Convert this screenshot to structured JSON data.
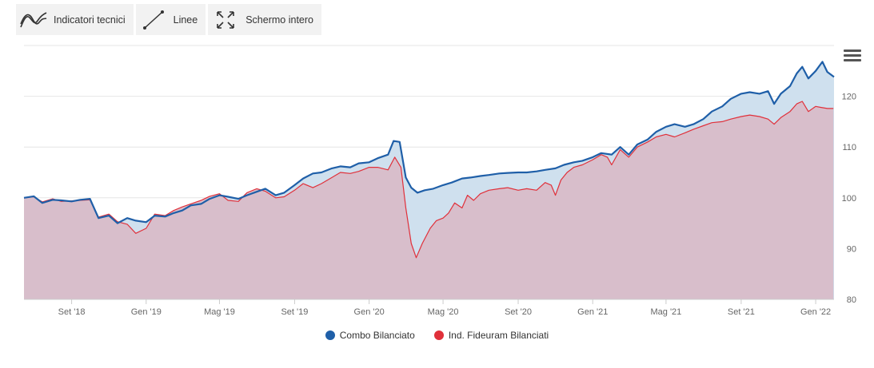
{
  "toolbar": {
    "indicators": {
      "label": "Indicatori tecnici",
      "icon": "indicators-icon"
    },
    "lines": {
      "label": "Linee",
      "icon": "line-icon"
    },
    "fullscreen": {
      "label": "Schermo intero",
      "icon": "fullscreen-icon"
    }
  },
  "menu": {
    "icon": "hamburger-menu-icon"
  },
  "colors": {
    "combo_line": "#1f5fa8",
    "combo_fill": "#cfe0ee",
    "fideuram_line": "#e0303a",
    "fideuram_fill": "#d8bcc8",
    "grid": "#e6e6e6",
    "axis_text": "#666666"
  },
  "chart_data": {
    "type": "area",
    "x_range": [
      "2018-06-15",
      "2022-01-31"
    ],
    "x_ticks": [
      {
        "date": "2018-09-01",
        "label": "Set '18"
      },
      {
        "date": "2019-01-01",
        "label": "Gen '19"
      },
      {
        "date": "2019-05-01",
        "label": "Mag '19"
      },
      {
        "date": "2019-09-01",
        "label": "Set '19"
      },
      {
        "date": "2020-01-01",
        "label": "Gen '20"
      },
      {
        "date": "2020-05-01",
        "label": "Mag '20"
      },
      {
        "date": "2020-09-01",
        "label": "Set '20"
      },
      {
        "date": "2021-01-01",
        "label": "Gen '21"
      },
      {
        "date": "2021-05-01",
        "label": "Mag '21"
      },
      {
        "date": "2021-09-01",
        "label": "Set '21"
      },
      {
        "date": "2022-01-01",
        "label": "Gen '22"
      }
    ],
    "ylim": [
      80,
      130
    ],
    "y_ticks": [
      80,
      90,
      100,
      110,
      120
    ],
    "y_axis_position": "right",
    "grid": true,
    "legend_position": "bottom",
    "series": [
      {
        "name": "Combo Bilanciato",
        "points": [
          [
            "2018-06-15",
            100
          ],
          [
            "2018-07-01",
            100.3
          ],
          [
            "2018-07-15",
            99
          ],
          [
            "2018-08-01",
            99.6
          ],
          [
            "2018-08-15",
            99.5
          ],
          [
            "2018-09-01",
            99.3
          ],
          [
            "2018-09-15",
            99.6
          ],
          [
            "2018-10-01",
            99.8
          ],
          [
            "2018-10-15",
            96
          ],
          [
            "2018-11-01",
            96.5
          ],
          [
            "2018-11-15",
            95
          ],
          [
            "2018-12-01",
            96
          ],
          [
            "2018-12-15",
            95.5
          ],
          [
            "2019-01-01",
            95.2
          ],
          [
            "2019-01-15",
            96.5
          ],
          [
            "2019-02-01",
            96.3
          ],
          [
            "2019-02-15",
            97
          ],
          [
            "2019-03-01",
            97.5
          ],
          [
            "2019-03-15",
            98.5
          ],
          [
            "2019-04-01",
            98.8
          ],
          [
            "2019-04-15",
            99.8
          ],
          [
            "2019-05-01",
            100.5
          ],
          [
            "2019-05-15",
            100.2
          ],
          [
            "2019-06-01",
            99.8
          ],
          [
            "2019-06-15",
            100.5
          ],
          [
            "2019-07-01",
            101.2
          ],
          [
            "2019-07-15",
            101.8
          ],
          [
            "2019-08-01",
            100.5
          ],
          [
            "2019-08-15",
            101
          ],
          [
            "2019-09-01",
            102.5
          ],
          [
            "2019-09-15",
            103.8
          ],
          [
            "2019-10-01",
            104.8
          ],
          [
            "2019-10-15",
            105
          ],
          [
            "2019-11-01",
            105.8
          ],
          [
            "2019-11-15",
            106.2
          ],
          [
            "2019-12-01",
            106
          ],
          [
            "2019-12-15",
            106.8
          ],
          [
            "2020-01-01",
            107
          ],
          [
            "2020-01-15",
            107.8
          ],
          [
            "2020-02-01",
            108.5
          ],
          [
            "2020-02-10",
            111.2
          ],
          [
            "2020-02-20",
            111
          ],
          [
            "2020-03-01",
            104
          ],
          [
            "2020-03-10",
            102
          ],
          [
            "2020-03-20",
            101
          ],
          [
            "2020-04-01",
            101.5
          ],
          [
            "2020-04-15",
            101.8
          ],
          [
            "2020-05-01",
            102.5
          ],
          [
            "2020-05-15",
            103
          ],
          [
            "2020-06-01",
            103.8
          ],
          [
            "2020-06-15",
            104
          ],
          [
            "2020-07-01",
            104.3
          ],
          [
            "2020-07-15",
            104.5
          ],
          [
            "2020-08-01",
            104.8
          ],
          [
            "2020-08-15",
            104.9
          ],
          [
            "2020-09-01",
            105
          ],
          [
            "2020-09-15",
            105
          ],
          [
            "2020-10-01",
            105.2
          ],
          [
            "2020-10-15",
            105.5
          ],
          [
            "2020-11-01",
            105.8
          ],
          [
            "2020-11-15",
            106.5
          ],
          [
            "2020-12-01",
            107
          ],
          [
            "2020-12-15",
            107.3
          ],
          [
            "2021-01-01",
            108
          ],
          [
            "2021-01-15",
            108.8
          ],
          [
            "2021-02-01",
            108.5
          ],
          [
            "2021-02-15",
            110
          ],
          [
            "2021-03-01",
            108.5
          ],
          [
            "2021-03-15",
            110.5
          ],
          [
            "2021-04-01",
            111.5
          ],
          [
            "2021-04-15",
            113
          ],
          [
            "2021-05-01",
            114
          ],
          [
            "2021-05-15",
            114.5
          ],
          [
            "2021-06-01",
            114
          ],
          [
            "2021-06-15",
            114.5
          ],
          [
            "2021-07-01",
            115.5
          ],
          [
            "2021-07-15",
            117
          ],
          [
            "2021-08-01",
            118
          ],
          [
            "2021-08-15",
            119.5
          ],
          [
            "2021-09-01",
            120.5
          ],
          [
            "2021-09-15",
            120.8
          ],
          [
            "2021-10-01",
            120.5
          ],
          [
            "2021-10-15",
            121
          ],
          [
            "2021-10-25",
            118.5
          ],
          [
            "2021-11-05",
            120.5
          ],
          [
            "2021-11-20",
            122
          ],
          [
            "2021-12-01",
            124.5
          ],
          [
            "2021-12-10",
            125.8
          ],
          [
            "2021-12-20",
            123.5
          ],
          [
            "2022-01-01",
            125
          ],
          [
            "2022-01-12",
            126.8
          ],
          [
            "2022-01-20",
            124.8
          ],
          [
            "2022-01-31",
            123.8
          ]
        ]
      },
      {
        "name": "Ind. Fideuram Bilanciati",
        "points": [
          [
            "2018-06-15",
            100
          ],
          [
            "2018-07-01",
            100.2
          ],
          [
            "2018-07-15",
            99.2
          ],
          [
            "2018-08-01",
            99.8
          ],
          [
            "2018-08-15",
            99.3
          ],
          [
            "2018-09-01",
            99.4
          ],
          [
            "2018-09-15",
            99.5
          ],
          [
            "2018-10-01",
            99.6
          ],
          [
            "2018-10-15",
            96.2
          ],
          [
            "2018-11-01",
            96.8
          ],
          [
            "2018-11-15",
            95.3
          ],
          [
            "2018-12-01",
            94.8
          ],
          [
            "2018-12-15",
            93
          ],
          [
            "2019-01-01",
            94
          ],
          [
            "2019-01-15",
            96.8
          ],
          [
            "2019-02-01",
            96.5
          ],
          [
            "2019-02-15",
            97.5
          ],
          [
            "2019-03-01",
            98.2
          ],
          [
            "2019-03-15",
            98.8
          ],
          [
            "2019-04-01",
            99.5
          ],
          [
            "2019-04-15",
            100.3
          ],
          [
            "2019-05-01",
            100.8
          ],
          [
            "2019-05-15",
            99.5
          ],
          [
            "2019-06-01",
            99.3
          ],
          [
            "2019-06-15",
            101
          ],
          [
            "2019-07-01",
            101.8
          ],
          [
            "2019-07-15",
            101.3
          ],
          [
            "2019-08-01",
            100
          ],
          [
            "2019-08-15",
            100.2
          ],
          [
            "2019-09-01",
            101.5
          ],
          [
            "2019-09-15",
            102.8
          ],
          [
            "2019-10-01",
            102
          ],
          [
            "2019-10-15",
            102.8
          ],
          [
            "2019-11-01",
            104
          ],
          [
            "2019-11-15",
            105
          ],
          [
            "2019-12-01",
            104.8
          ],
          [
            "2019-12-15",
            105.2
          ],
          [
            "2020-01-01",
            106
          ],
          [
            "2020-01-15",
            106
          ],
          [
            "2020-02-01",
            105.5
          ],
          [
            "2020-02-12",
            108
          ],
          [
            "2020-02-22",
            106
          ],
          [
            "2020-03-01",
            98
          ],
          [
            "2020-03-10",
            91
          ],
          [
            "2020-03-18",
            88.2
          ],
          [
            "2020-03-28",
            91
          ],
          [
            "2020-04-10",
            94
          ],
          [
            "2020-04-20",
            95.5
          ],
          [
            "2020-05-01",
            96
          ],
          [
            "2020-05-10",
            97
          ],
          [
            "2020-05-20",
            99
          ],
          [
            "2020-06-01",
            98
          ],
          [
            "2020-06-10",
            100.5
          ],
          [
            "2020-06-20",
            99.5
          ],
          [
            "2020-07-01",
            100.8
          ],
          [
            "2020-07-15",
            101.5
          ],
          [
            "2020-08-01",
            101.8
          ],
          [
            "2020-08-15",
            102
          ],
          [
            "2020-09-01",
            101.5
          ],
          [
            "2020-09-15",
            101.8
          ],
          [
            "2020-10-01",
            101.5
          ],
          [
            "2020-10-15",
            103
          ],
          [
            "2020-10-25",
            102.5
          ],
          [
            "2020-11-01",
            100.5
          ],
          [
            "2020-11-10",
            103.5
          ],
          [
            "2020-11-20",
            105
          ],
          [
            "2020-12-01",
            106
          ],
          [
            "2020-12-15",
            106.5
          ],
          [
            "2021-01-01",
            107.5
          ],
          [
            "2021-01-15",
            108.5
          ],
          [
            "2021-01-25",
            108
          ],
          [
            "2021-02-01",
            106.5
          ],
          [
            "2021-02-15",
            109.5
          ],
          [
            "2021-03-01",
            108
          ],
          [
            "2021-03-15",
            110
          ],
          [
            "2021-04-01",
            111
          ],
          [
            "2021-04-15",
            112
          ],
          [
            "2021-05-01",
            112.5
          ],
          [
            "2021-05-15",
            112
          ],
          [
            "2021-06-01",
            112.8
          ],
          [
            "2021-06-15",
            113.5
          ],
          [
            "2021-07-01",
            114.2
          ],
          [
            "2021-07-15",
            114.8
          ],
          [
            "2021-08-01",
            115
          ],
          [
            "2021-08-15",
            115.5
          ],
          [
            "2021-09-01",
            116
          ],
          [
            "2021-09-15",
            116.3
          ],
          [
            "2021-10-01",
            116
          ],
          [
            "2021-10-15",
            115.5
          ],
          [
            "2021-10-25",
            114.5
          ],
          [
            "2021-11-05",
            115.8
          ],
          [
            "2021-11-20",
            117
          ],
          [
            "2021-12-01",
            118.5
          ],
          [
            "2021-12-10",
            119
          ],
          [
            "2021-12-20",
            117
          ],
          [
            "2022-01-01",
            118
          ],
          [
            "2022-01-10",
            117.8
          ],
          [
            "2022-01-20",
            117.6
          ],
          [
            "2022-01-30",
            117.6
          ]
        ]
      }
    ]
  }
}
